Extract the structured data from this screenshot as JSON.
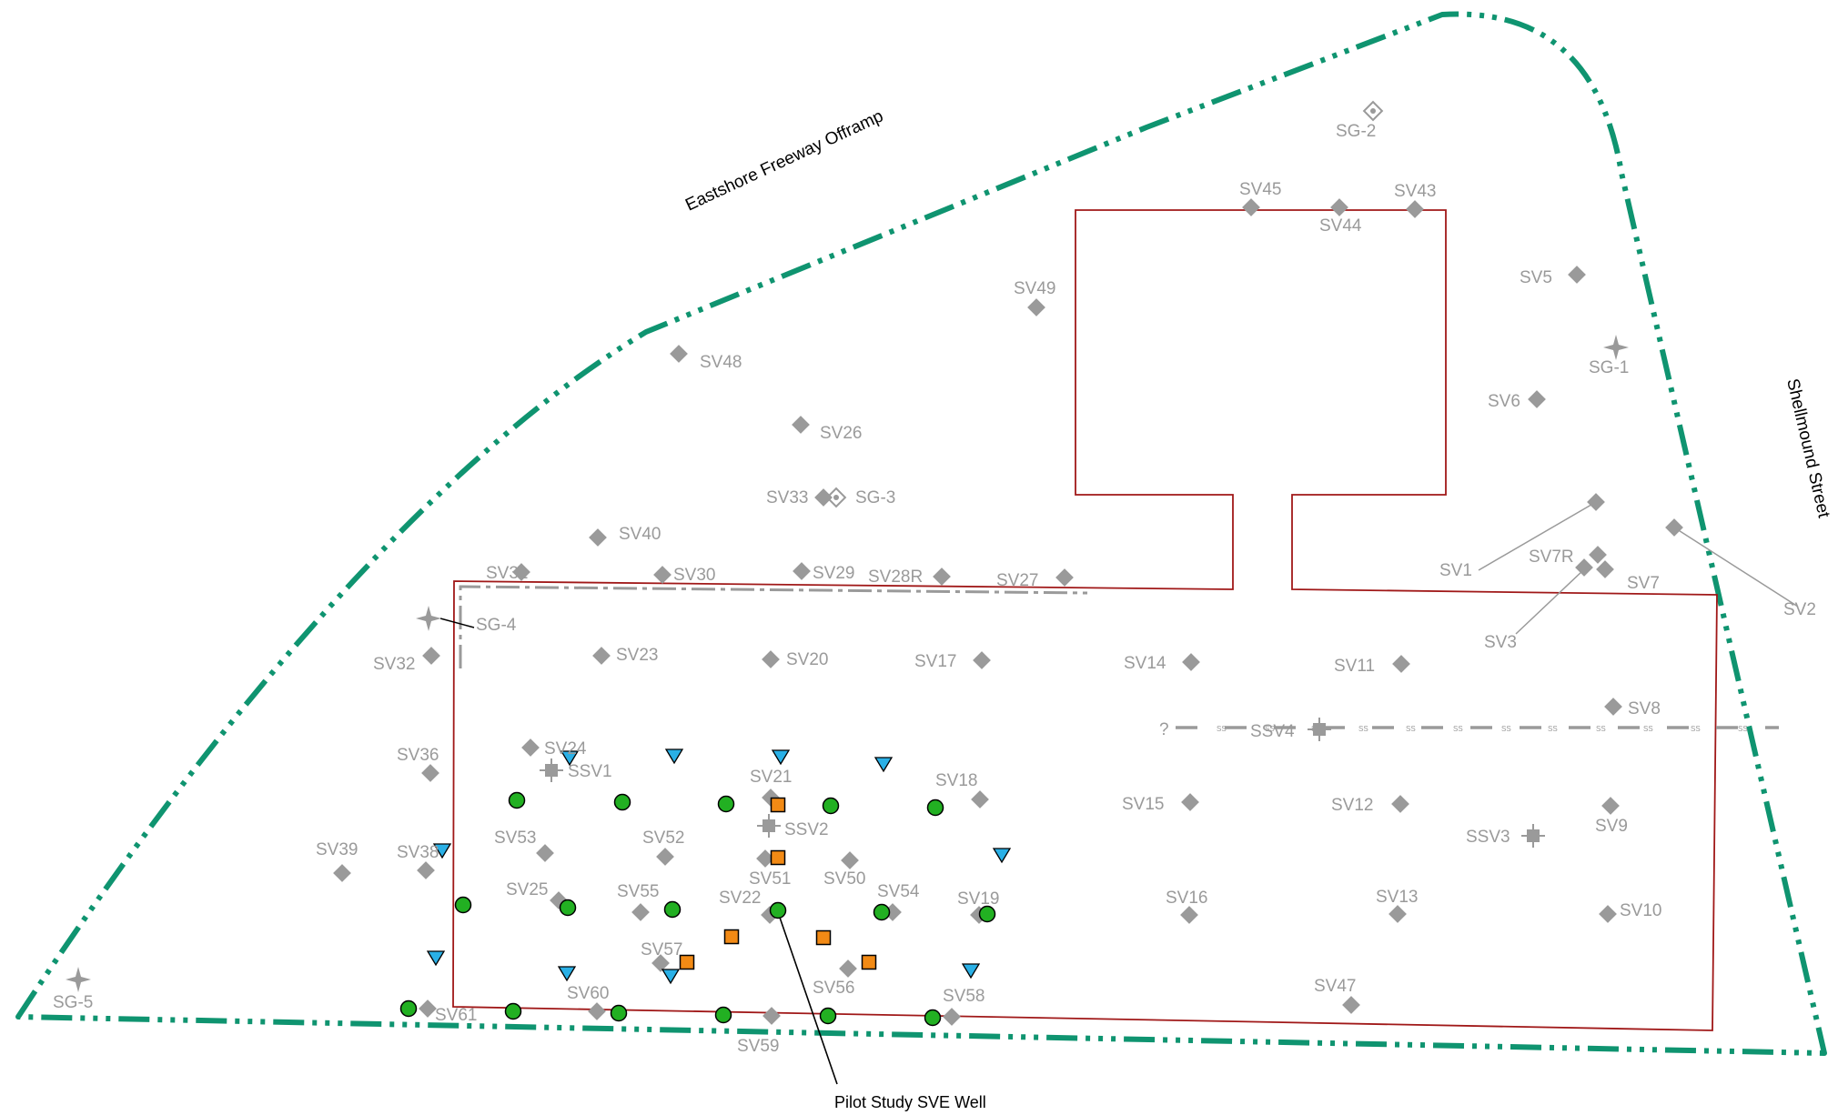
{
  "roads": {
    "offramp": "Eastshore Freeway Offramp",
    "street": "Shellmound Street"
  },
  "colors": {
    "boundary": "#0f9470",
    "building": "#a01818",
    "sample": "#9a9a9a",
    "green_well": "#22b022",
    "orange_square": "#f28a15",
    "blue_triangle": "#2ab0e6",
    "sewer": "#9a9a9a"
  },
  "sewer": {
    "unknown_mark": "?",
    "segment_mark": "SS"
  },
  "callout": {
    "label": "Pilot Study SVE Well"
  },
  "legend_icons": {
    "sample": "gray-diamond-icon",
    "sg_probe": "crosshair-diamond-icon",
    "sg_nested": "hollow-diamond-icon",
    "well": "green-circle-icon",
    "square": "orange-square-icon",
    "triangle": "blue-triangle-icon"
  },
  "points": {
    "SV1": "SV1",
    "SV2": "SV2",
    "SV3": "SV3",
    "SV5": "SV5",
    "SV6": "SV6",
    "SV7": "SV7",
    "SV7R": "SV7R",
    "SV8": "SV8",
    "SV9": "SV9",
    "SV10": "SV10",
    "SV11": "SV11",
    "SV12": "SV12",
    "SV13": "SV13",
    "SV14": "SV14",
    "SV15": "SV15",
    "SV16": "SV16",
    "SV17": "SV17",
    "SV18": "SV18",
    "SV19": "SV19",
    "SV20": "SV20",
    "SV21": "SV21",
    "SV22": "SV22",
    "SV23": "SV23",
    "SV24": "SV24",
    "SV25": "SV25",
    "SV26": "SV26",
    "SV27": "SV27",
    "SV28R": "SV28R",
    "SV29": "SV29",
    "SV30": "SV30",
    "SV31": "SV31",
    "SV32": "SV32",
    "SV33": "SV33",
    "SV36": "SV36",
    "SV38": "SV38",
    "SV39": "SV39",
    "SV40": "SV40",
    "SV43": "SV43",
    "SV44": "SV44",
    "SV45": "SV45",
    "SV47": "SV47",
    "SV48": "SV48",
    "SV49": "SV49",
    "SV50": "SV50",
    "SV51": "SV51",
    "SV52": "SV52",
    "SV53": "SV53",
    "SV54": "SV54",
    "SV55": "SV55",
    "SV56": "SV56",
    "SV57": "SV57",
    "SV58": "SV58",
    "SV59": "SV59",
    "SV60": "SV60",
    "SV61": "SV61",
    "SSV1": "SSV1",
    "SSV2": "SSV2",
    "SSV3": "SSV3",
    "SSV4": "SSV4",
    "SG1": "SG-1",
    "SG2": "SG-2",
    "SG3": "SG-3",
    "SG4": "SG-4",
    "SG5": "SG-5"
  }
}
